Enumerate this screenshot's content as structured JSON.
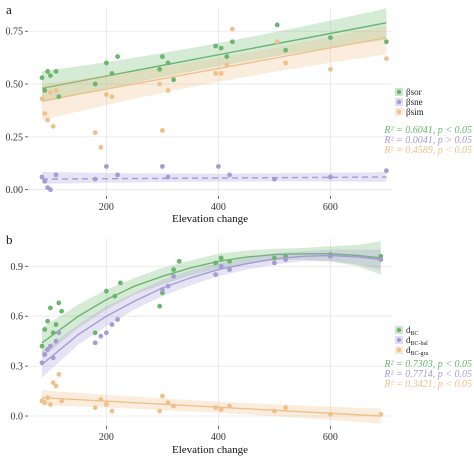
{
  "chart_data": [
    {
      "panel": "a",
      "type": "scatter",
      "xlabel": "Elevation change",
      "ylabel": "",
      "xlim": [
        60,
        710
      ],
      "ylim": [
        -0.03,
        0.86
      ],
      "xticks": [
        200,
        400,
        600
      ],
      "xtick_labels": [
        "200",
        "400",
        "600"
      ],
      "yticks": [
        0,
        0.25,
        0.5,
        0.75
      ],
      "ytick_labels": [
        "0.00",
        "0.25",
        "0.50",
        "0.75"
      ],
      "grid": true,
      "legend_position": "right",
      "series": [
        {
          "name": "βsor",
          "color": "#6ab66d",
          "points": [
            [
              85,
              0.53
            ],
            [
              90,
              0.47
            ],
            [
              95,
              0.56
            ],
            [
              100,
              0.54
            ],
            [
              110,
              0.56
            ],
            [
              115,
              0.44
            ],
            [
              180,
              0.5
            ],
            [
              200,
              0.6
            ],
            [
              210,
              0.55
            ],
            [
              220,
              0.63
            ],
            [
              295,
              0.57
            ],
            [
              300,
              0.63
            ],
            [
              310,
              0.6
            ],
            [
              320,
              0.52
            ],
            [
              395,
              0.68
            ],
            [
              405,
              0.67
            ],
            [
              415,
              0.63
            ],
            [
              425,
              0.7
            ],
            [
              505,
              0.78
            ],
            [
              520,
              0.66
            ],
            [
              600,
              0.72
            ],
            [
              700,
              0.7
            ]
          ],
          "fit": {
            "kind": "linear",
            "x": [
              85,
              700
            ],
            "y": [
              0.48,
              0.79
            ]
          },
          "band": {
            "upper": [
              0.55,
              0.85
            ],
            "lower": [
              0.42,
              0.72
            ]
          },
          "stat": "R² = 0.6041, p < 0.05"
        },
        {
          "name": "βsne",
          "color": "#a79bd6",
          "points": [
            [
              85,
              0.06
            ],
            [
              90,
              0.04
            ],
            [
              95,
              0.01
            ],
            [
              100,
              0.0
            ],
            [
              110,
              0.07
            ],
            [
              180,
              0.05
            ],
            [
              200,
              0.11
            ],
            [
              220,
              0.07
            ],
            [
              300,
              0.11
            ],
            [
              310,
              0.06
            ],
            [
              400,
              0.11
            ],
            [
              420,
              0.07
            ],
            [
              500,
              0.05
            ],
            [
              600,
              0.06
            ],
            [
              700,
              0.09
            ]
          ],
          "fit": {
            "kind": "linear",
            "x": [
              85,
              700
            ],
            "y": [
              0.05,
              0.06
            ]
          },
          "band": {
            "upper": [
              0.08,
              0.08
            ],
            "lower": [
              0.03,
              0.04
            ]
          },
          "stat": "R² = 0.0041, p > 0.05"
        },
        {
          "name": "βsim",
          "color": "#f0c08a",
          "points": [
            [
              85,
              0.43
            ],
            [
              90,
              0.36
            ],
            [
              95,
              0.33
            ],
            [
              100,
              0.46
            ],
            [
              105,
              0.3
            ],
            [
              110,
              0.47
            ],
            [
              180,
              0.27
            ],
            [
              190,
              0.2
            ],
            [
              200,
              0.45
            ],
            [
              210,
              0.44
            ],
            [
              295,
              0.5
            ],
            [
              300,
              0.28
            ],
            [
              310,
              0.47
            ],
            [
              395,
              0.55
            ],
            [
              405,
              0.55
            ],
            [
              415,
              0.59
            ],
            [
              425,
              0.76
            ],
            [
              505,
              0.7
            ],
            [
              520,
              0.6
            ],
            [
              600,
              0.57
            ],
            [
              700,
              0.62
            ]
          ],
          "fit": {
            "kind": "linear",
            "x": [
              85,
              700
            ],
            "y": [
              0.42,
              0.72
            ]
          },
          "band": {
            "upper": [
              0.49,
              0.77
            ],
            "lower": [
              0.34,
              0.65
            ]
          },
          "stat": "R² = 0.4589, p < 0.05"
        }
      ]
    },
    {
      "panel": "b",
      "type": "scatter",
      "xlabel": "Elevation change",
      "ylabel": "",
      "xlim": [
        60,
        710
      ],
      "ylim": [
        -0.06,
        1.07
      ],
      "xticks": [
        200,
        400,
        600
      ],
      "xtick_labels": [
        "200",
        "400",
        "600"
      ],
      "yticks": [
        0,
        0.3,
        0.6,
        0.9
      ],
      "ytick_labels": [
        "0.0",
        "0.3",
        "0.6",
        "0.9"
      ],
      "grid": true,
      "legend_position": "right",
      "series": [
        {
          "name": "dBC",
          "name_main": "d",
          "name_sub": "BC",
          "color": "#6ab66d",
          "points": [
            [
              85,
              0.42
            ],
            [
              90,
              0.52
            ],
            [
              95,
              0.57
            ],
            [
              100,
              0.65
            ],
            [
              105,
              0.5
            ],
            [
              110,
              0.55
            ],
            [
              115,
              0.68
            ],
            [
              120,
              0.63
            ],
            [
              180,
              0.5
            ],
            [
              200,
              0.75
            ],
            [
              215,
              0.72
            ],
            [
              225,
              0.8
            ],
            [
              295,
              0.66
            ],
            [
              300,
              0.74
            ],
            [
              320,
              0.88
            ],
            [
              330,
              0.93
            ],
            [
              395,
              0.92
            ],
            [
              405,
              0.95
            ],
            [
              420,
              0.93
            ],
            [
              500,
              0.95
            ],
            [
              520,
              0.96
            ],
            [
              600,
              0.97
            ],
            [
              690,
              0.96
            ]
          ],
          "fit": {
            "kind": "curve",
            "x": [
              85,
              150,
              200,
              250,
              300,
              350,
              400,
              450,
              500,
              550,
              600,
              650,
              690
            ],
            "y": [
              0.44,
              0.6,
              0.7,
              0.78,
              0.84,
              0.89,
              0.93,
              0.955,
              0.97,
              0.975,
              0.975,
              0.965,
              0.95
            ]
          },
          "band": {
            "upper": [
              0.53,
              0.67,
              0.76,
              0.83,
              0.89,
              0.935,
              0.975,
              0.995,
              1.005,
              1.01,
              1.02,
              1.03,
              1.05
            ],
            "lower": [
              0.35,
              0.53,
              0.64,
              0.73,
              0.79,
              0.845,
              0.885,
              0.915,
              0.935,
              0.94,
              0.93,
              0.9,
              0.85
            ]
          },
          "stat": "R² = 0.7303, p < 0.05"
        },
        {
          "name": "dBC-bal",
          "name_main": "d",
          "name_sub": "BC-bal",
          "color": "#a79bd6",
          "points": [
            [
              85,
              0.32
            ],
            [
              90,
              0.37
            ],
            [
              95,
              0.4
            ],
            [
              100,
              0.42
            ],
            [
              105,
              0.35
            ],
            [
              110,
              0.45
            ],
            [
              115,
              0.5
            ],
            [
              180,
              0.44
            ],
            [
              190,
              0.48
            ],
            [
              200,
              0.5
            ],
            [
              210,
              0.55
            ],
            [
              220,
              0.58
            ],
            [
              300,
              0.76
            ],
            [
              310,
              0.78
            ],
            [
              320,
              0.84
            ],
            [
              395,
              0.85
            ],
            [
              405,
              0.9
            ],
            [
              420,
              0.88
            ],
            [
              500,
              0.92
            ],
            [
              520,
              0.94
            ],
            [
              600,
              0.96
            ],
            [
              690,
              0.94
            ]
          ],
          "fit": {
            "kind": "curve",
            "x": [
              85,
              150,
              200,
              250,
              300,
              350,
              400,
              450,
              500,
              550,
              600,
              650,
              690
            ],
            "y": [
              0.31,
              0.49,
              0.6,
              0.69,
              0.77,
              0.83,
              0.88,
              0.915,
              0.945,
              0.96,
              0.965,
              0.955,
              0.94
            ]
          },
          "band": {
            "upper": [
              0.39,
              0.55,
              0.66,
              0.74,
              0.82,
              0.875,
              0.92,
              0.95,
              0.98,
              0.99,
              1.0,
              1.0,
              1.0
            ],
            "lower": [
              0.23,
              0.43,
              0.54,
              0.64,
              0.72,
              0.785,
              0.84,
              0.88,
              0.91,
              0.93,
              0.93,
              0.91,
              0.88
            ]
          },
          "stat": "R² = 0.7714, p < 0.05"
        },
        {
          "name": "dBC-gra",
          "name_main": "d",
          "name_sub": "BC-gra",
          "color": "#f0c08a",
          "points": [
            [
              85,
              0.09
            ],
            [
              90,
              0.08
            ],
            [
              95,
              0.11
            ],
            [
              100,
              0.07
            ],
            [
              105,
              0.2
            ],
            [
              110,
              0.18
            ],
            [
              115,
              0.25
            ],
            [
              120,
              0.09
            ],
            [
              180,
              0.05
            ],
            [
              190,
              0.1
            ],
            [
              200,
              0.07
            ],
            [
              210,
              0.03
            ],
            [
              295,
              0.03
            ],
            [
              300,
              0.12
            ],
            [
              310,
              0.08
            ],
            [
              320,
              0.06
            ],
            [
              395,
              0.05
            ],
            [
              405,
              0.04
            ],
            [
              420,
              0.06
            ],
            [
              500,
              0.03
            ],
            [
              520,
              0.05
            ],
            [
              600,
              0.01
            ],
            [
              690,
              0.01
            ]
          ],
          "fit": {
            "kind": "linear",
            "x": [
              85,
              690
            ],
            "y": [
              0.11,
              0.0
            ]
          },
          "band": {
            "upper": [
              0.15,
              0.04
            ],
            "lower": [
              0.07,
              -0.04
            ]
          },
          "stat": "R² = 0.3421, p < 0.05"
        }
      ]
    }
  ]
}
